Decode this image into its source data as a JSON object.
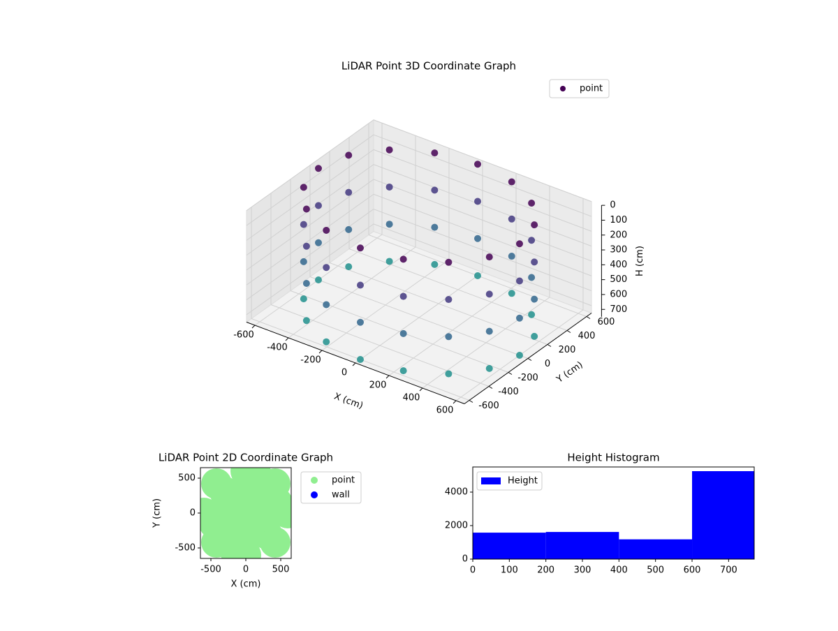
{
  "chart_data": [
    {
      "type": "scatter3d",
      "title": "LiDAR Point 3D Coordinate Graph",
      "xlabel": "X (cm)",
      "ylabel": "Y (cm)",
      "zlabel": "H (cm)",
      "xlim": [
        -650,
        650
      ],
      "ylim": [
        -650,
        650
      ],
      "zlim": [
        0,
        750
      ],
      "z_inverted": true,
      "xticks": [
        -600,
        -400,
        -200,
        0,
        200,
        400,
        600
      ],
      "yticks": [
        -600,
        -400,
        -200,
        0,
        200,
        400,
        600
      ],
      "zticks": [
        0,
        100,
        200,
        300,
        400,
        500,
        600,
        700
      ],
      "colormap": "viridis",
      "legend": "upper right",
      "series": [
        {
          "name": "point",
          "color": "#440154",
          "x": [
            600,
            600,
            600,
            600,
            554,
            554,
            554,
            554,
            424,
            424,
            424,
            424,
            230,
            230,
            230,
            230,
            0,
            0,
            0,
            0,
            -230,
            -230,
            -230,
            -230,
            -424,
            -424,
            -424,
            -424,
            -554,
            -554,
            -554,
            -554,
            -600,
            -600,
            -600,
            -600,
            -554,
            -554,
            -554,
            -554,
            -424,
            -424,
            -424,
            -424,
            -230,
            -230,
            -230,
            -230,
            0,
            0,
            0,
            0,
            230,
            230,
            230,
            230,
            424,
            424,
            424,
            424,
            554,
            554,
            554,
            554
          ],
          "y": [
            0,
            0,
            0,
            0,
            230,
            230,
            230,
            230,
            424,
            424,
            424,
            424,
            554,
            554,
            554,
            554,
            600,
            600,
            600,
            600,
            554,
            554,
            554,
            554,
            424,
            424,
            424,
            424,
            230,
            230,
            230,
            230,
            0,
            0,
            0,
            0,
            -230,
            -230,
            -230,
            -230,
            -424,
            -424,
            -424,
            -424,
            -554,
            -554,
            -554,
            -554,
            -600,
            -600,
            -600,
            -600,
            -554,
            -554,
            -554,
            -554,
            -424,
            -424,
            -424,
            -424,
            -230,
            -230,
            -230,
            -230
          ],
          "z": [
            0,
            250,
            500,
            750,
            0,
            250,
            500,
            750,
            0,
            250,
            500,
            750,
            0,
            250,
            500,
            750,
            0,
            250,
            500,
            750,
            0,
            250,
            500,
            750,
            0,
            250,
            500,
            750,
            0,
            250,
            500,
            750,
            0,
            250,
            500,
            750,
            0,
            250,
            500,
            750,
            0,
            250,
            500,
            750,
            0,
            250,
            500,
            750,
            0,
            250,
            500,
            750,
            0,
            250,
            500,
            750,
            0,
            250,
            500,
            750,
            0,
            250,
            500,
            750
          ]
        }
      ]
    },
    {
      "type": "scatter",
      "title": "LiDAR Point 2D Coordinate Graph",
      "xlabel": "X (cm)",
      "ylabel": "Y (cm)",
      "xlim": [
        -650,
        650
      ],
      "ylim": [
        -650,
        650
      ],
      "xticks": [
        -500,
        0,
        500
      ],
      "yticks": [
        -500,
        0,
        500
      ],
      "legend": "outside right",
      "series": [
        {
          "name": "point",
          "color": "#90ee90",
          "x": [
            0,
            300,
            -300,
            0,
            0,
            600,
            -600,
            0,
            0,
            300,
            300,
            -300,
            -300,
            420,
            420,
            -420,
            -420,
            150,
            -150,
            450,
            -450
          ],
          "y": [
            0,
            0,
            0,
            300,
            -300,
            0,
            0,
            600,
            -600,
            300,
            -300,
            300,
            -300,
            420,
            -420,
            420,
            -420,
            550,
            -550,
            150,
            -150
          ]
        },
        {
          "name": "wall",
          "color": "#0000ff",
          "x": [],
          "y": []
        }
      ]
    },
    {
      "type": "histogram",
      "title": "Height Histogram",
      "name": "Height",
      "color": "#0000ff",
      "bins": [
        0,
        200,
        400,
        600,
        770
      ],
      "values": [
        1580,
        1620,
        1180,
        5250
      ],
      "xlim": [
        0,
        770
      ],
      "ylim": [
        0,
        5500
      ],
      "xticks": [
        0,
        100,
        200,
        300,
        400,
        500,
        600,
        700
      ],
      "yticks": [
        0,
        2000,
        4000
      ],
      "legend": "upper left"
    }
  ]
}
